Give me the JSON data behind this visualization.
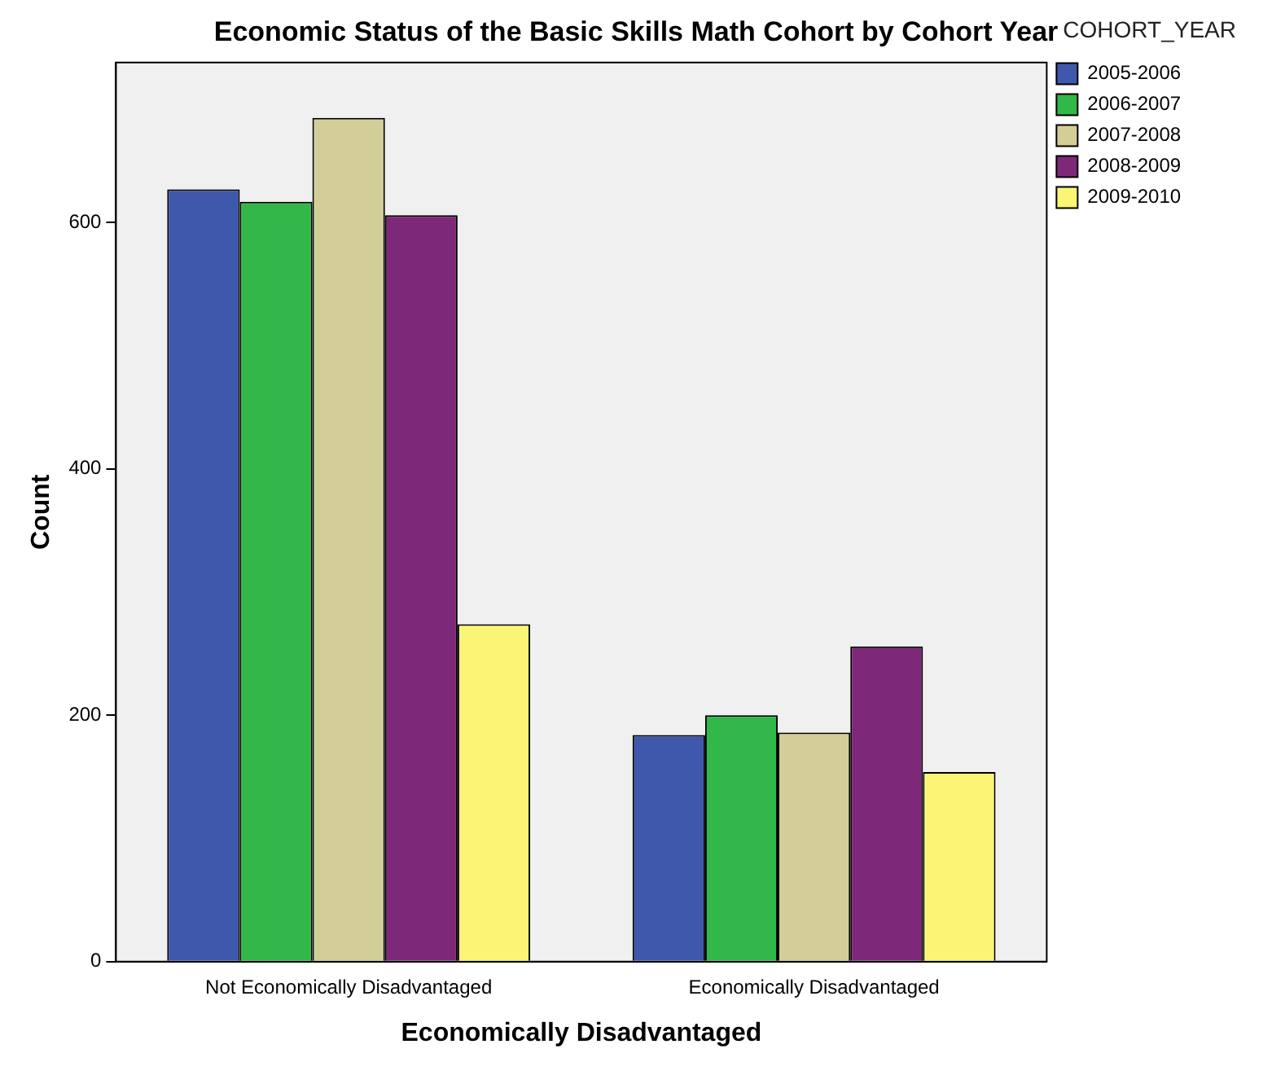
{
  "chart_data": {
    "type": "bar",
    "title": "Economic Status of the Basic Skills Math Cohort by Cohort Year",
    "xlabel": "Economically Disadvantaged",
    "ylabel": "Count",
    "legend_title": "COHORT_YEAR",
    "categories": [
      "Not Economically Disadvantaged",
      "Economically Disadvantaged"
    ],
    "series": [
      {
        "name": "2005-2006",
        "color": "#3f58ab",
        "values": [
          627,
          184
        ]
      },
      {
        "name": "2006-2007",
        "color": "#31b848",
        "values": [
          617,
          200
        ]
      },
      {
        "name": "2007-2008",
        "color": "#d3ce97",
        "values": [
          685,
          186
        ]
      },
      {
        "name": "2008-2009",
        "color": "#7e287a",
        "values": [
          606,
          256
        ]
      },
      {
        "name": "2009-2010",
        "color": "#faf574",
        "values": [
          274,
          154
        ]
      }
    ],
    "ylim": [
      0,
      730
    ],
    "yticks": [
      0,
      200,
      400,
      600
    ],
    "grid": false,
    "legend": "top right"
  }
}
